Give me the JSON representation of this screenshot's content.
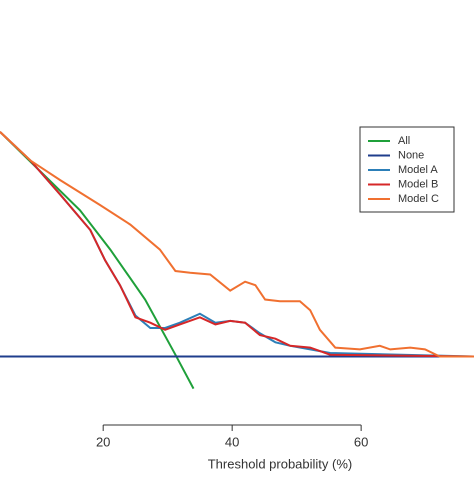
{
  "chart_data": {
    "type": "line",
    "x_label": "Threshold probability (%)",
    "xlim": [
      4,
      77.5
    ],
    "xticks": [
      20,
      40,
      60
    ],
    "ylim": [
      -0.03,
      0.2
    ],
    "legend": "top-right",
    "series": [
      {
        "name": "All",
        "color": "#1fa03a",
        "x": [
          4.0,
          16.4,
          21.1,
          26.5,
          31.2,
          34.0
        ],
        "values": [
          0.126,
          0.082,
          0.06,
          0.032,
          0.001,
          -0.018
        ]
      },
      {
        "name": "None",
        "color": "#1f3d8c",
        "x": [
          4.0,
          77.5
        ],
        "values": [
          0,
          0
        ]
      },
      {
        "name": "Model A",
        "color": "#2c7fb8",
        "x": [
          4.0,
          8.7,
          13.3,
          18.0,
          20.3,
          22.6,
          25.0,
          27.3,
          29.6,
          31.9,
          35.0,
          37.4,
          39.7,
          42.0,
          44.3,
          46.7,
          49.0,
          52.1,
          55.2,
          77.5
        ],
        "values": [
          0.126,
          0.11,
          0.091,
          0.071,
          0.054,
          0.04,
          0.023,
          0.016,
          0.016,
          0.019,
          0.024,
          0.019,
          0.02,
          0.019,
          0.013,
          0.008,
          0.006,
          0.004,
          0.002,
          0.0
        ]
      },
      {
        "name": "Model B",
        "color": "#d62728",
        "x": [
          4.0,
          8.7,
          13.3,
          18.0,
          20.3,
          22.6,
          25.0,
          27.3,
          29.6,
          31.9,
          35.0,
          37.4,
          39.7,
          42.0,
          44.3,
          46.7,
          49.0,
          52.1,
          55.2,
          77.5
        ],
        "values": [
          0.126,
          0.11,
          0.091,
          0.071,
          0.054,
          0.04,
          0.022,
          0.019,
          0.015,
          0.018,
          0.022,
          0.018,
          0.02,
          0.019,
          0.012,
          0.01,
          0.006,
          0.005,
          0.001,
          0.0
        ]
      },
      {
        "name": "Model C",
        "color": "#f07030",
        "x": [
          4.0,
          8.7,
          13.3,
          19.5,
          24.2,
          28.8,
          31.2,
          33.5,
          36.6,
          39.7,
          42.0,
          43.6,
          45.1,
          47.4,
          50.5,
          52.1,
          53.6,
          56.0,
          59.8,
          62.9,
          64.5,
          67.6,
          69.9,
          72.2,
          77.5
        ],
        "values": [
          0.126,
          0.11,
          0.099,
          0.085,
          0.074,
          0.06,
          0.048,
          0.047,
          0.046,
          0.037,
          0.042,
          0.04,
          0.032,
          0.031,
          0.031,
          0.026,
          0.015,
          0.005,
          0.004,
          0.006,
          0.004,
          0.005,
          0.004,
          0.0,
          0.0
        ]
      }
    ]
  }
}
